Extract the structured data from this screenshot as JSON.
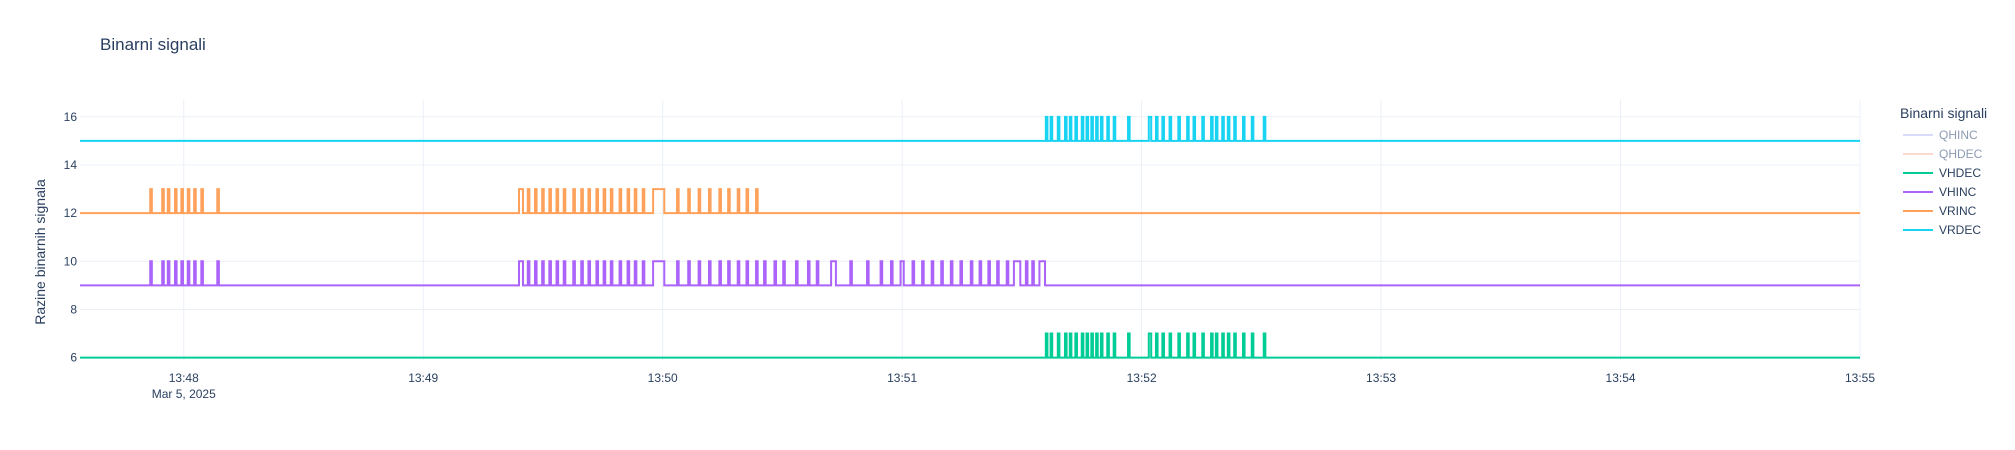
{
  "chart_data": {
    "type": "line",
    "title": "Binarni signali",
    "xlabel": "",
    "ylabel": "Razine binarnih signala",
    "x_range": [
      "2025-03-05 13:47:34",
      "2025-03-05 13:55:00"
    ],
    "ylim": [
      5.9,
      16.7
    ],
    "x_ticks": [
      {
        "t": "2025-03-05 13:48:00",
        "label": "13:48",
        "sub": "Mar 5, 2025"
      },
      {
        "t": "2025-03-05 13:49:00",
        "label": "13:49",
        "sub": ""
      },
      {
        "t": "2025-03-05 13:50:00",
        "label": "13:50",
        "sub": ""
      },
      {
        "t": "2025-03-05 13:51:00",
        "label": "13:51",
        "sub": ""
      },
      {
        "t": "2025-03-05 13:52:00",
        "label": "13:52",
        "sub": ""
      },
      {
        "t": "2025-03-05 13:53:00",
        "label": "13:53",
        "sub": ""
      },
      {
        "t": "2025-03-05 13:54:00",
        "label": "13:54",
        "sub": ""
      },
      {
        "t": "2025-03-05 13:55:00",
        "label": "13:55",
        "sub": ""
      }
    ],
    "y_ticks": [
      6,
      8,
      10,
      12,
      14,
      16
    ],
    "grid": true,
    "legend": {
      "title": "Binarni signali",
      "position": "right"
    },
    "series": [
      {
        "name": "QHINC",
        "color": "#b6b8f5",
        "visible": false,
        "base": 3,
        "pulse": 1,
        "pulses": []
      },
      {
        "name": "QHDEC",
        "color": "#f8b49a",
        "visible": false,
        "base": 3,
        "pulse": 1,
        "pulses": []
      },
      {
        "name": "VHDEC",
        "color": "#00cc96",
        "visible": true,
        "base": 6,
        "pulse": 7,
        "pulses": [
          [
            "13:51:36.0",
            "13:51:36.4"
          ],
          [
            "13:51:37.2",
            "13:51:37.6"
          ],
          [
            "13:51:39.0",
            "13:51:39.4"
          ],
          [
            "13:51:40.8",
            "13:51:41.2"
          ],
          [
            "13:51:42.0",
            "13:51:42.4"
          ],
          [
            "13:51:43.4",
            "13:51:43.8"
          ],
          [
            "13:51:45.0",
            "13:51:45.4"
          ],
          [
            "13:51:46.2",
            "13:51:46.6"
          ],
          [
            "13:51:47.4",
            "13:51:47.8"
          ],
          [
            "13:51:48.6",
            "13:51:49.0"
          ],
          [
            "13:51:49.8",
            "13:51:50.2"
          ],
          [
            "13:51:51.4",
            "13:51:51.8"
          ],
          [
            "13:51:53.0",
            "13:51:53.4"
          ],
          [
            "13:51:56.6",
            "13:51:57.0"
          ],
          [
            "13:52:01.8",
            "13:52:02.4"
          ],
          [
            "13:52:03.6",
            "13:52:04.0"
          ],
          [
            "13:52:05.2",
            "13:52:05.6"
          ],
          [
            "13:52:07.0",
            "13:52:07.4"
          ],
          [
            "13:52:09.2",
            "13:52:09.6"
          ],
          [
            "13:52:11.4",
            "13:52:11.8"
          ],
          [
            "13:52:13.0",
            "13:52:13.4"
          ],
          [
            "13:52:15.2",
            "13:52:15.6"
          ],
          [
            "13:52:17.4",
            "13:52:17.8"
          ],
          [
            "13:52:18.6",
            "13:52:19.0"
          ],
          [
            "13:52:20.2",
            "13:52:20.6"
          ],
          [
            "13:52:21.6",
            "13:52:22.0"
          ],
          [
            "13:52:23.2",
            "13:52:23.6"
          ],
          [
            "13:52:25.4",
            "13:52:25.8"
          ],
          [
            "13:52:27.6",
            "13:52:28.0"
          ],
          [
            "13:52:30.6",
            "13:52:31.0"
          ]
        ]
      },
      {
        "name": "VHINC",
        "color": "#ab63fa",
        "visible": true,
        "base": 9,
        "pulse": 10,
        "pulses": [
          [
            "13:47:51.6",
            "13:47:52.0"
          ],
          [
            "13:47:54.6",
            "13:47:55.0"
          ],
          [
            "13:47:56.0",
            "13:47:56.4"
          ],
          [
            "13:47:57.8",
            "13:47:58.2"
          ],
          [
            "13:47:59.4",
            "13:47:59.8"
          ],
          [
            "13:48:01.0",
            "13:48:01.4"
          ],
          [
            "13:48:02.6",
            "13:48:03.0"
          ],
          [
            "13:48:04.4",
            "13:48:04.8"
          ],
          [
            "13:48:08.4",
            "13:48:08.8"
          ],
          [
            "13:49:24.0",
            "13:49:25.0"
          ],
          [
            "13:49:26.2",
            "13:49:26.6"
          ],
          [
            "13:49:28.0",
            "13:49:28.4"
          ],
          [
            "13:49:29.8",
            "13:49:30.2"
          ],
          [
            "13:49:31.6",
            "13:49:32.0"
          ],
          [
            "13:49:33.4",
            "13:49:33.8"
          ],
          [
            "13:49:35.2",
            "13:49:35.6"
          ],
          [
            "13:49:37.6",
            "13:49:38.0"
          ],
          [
            "13:49:39.6",
            "13:49:40.0"
          ],
          [
            "13:49:41.4",
            "13:49:41.8"
          ],
          [
            "13:49:43.4",
            "13:49:43.8"
          ],
          [
            "13:49:45.2",
            "13:49:45.6"
          ],
          [
            "13:49:47.0",
            "13:49:47.4"
          ],
          [
            "13:49:49.2",
            "13:49:49.6"
          ],
          [
            "13:49:51.2",
            "13:49:51.6"
          ],
          [
            "13:49:53.0",
            "13:49:53.4"
          ],
          [
            "13:49:55.0",
            "13:49:55.4"
          ],
          [
            "13:49:57.6",
            "13:50:00.4"
          ],
          [
            "13:50:03.6",
            "13:50:04.0"
          ],
          [
            "13:50:06.4",
            "13:50:06.8"
          ],
          [
            "13:50:09.0",
            "13:50:09.4"
          ],
          [
            "13:50:11.6",
            "13:50:12.0"
          ],
          [
            "13:50:14.2",
            "13:50:14.6"
          ],
          [
            "13:50:16.4",
            "13:50:16.8"
          ],
          [
            "13:50:18.8",
            "13:50:19.2"
          ],
          [
            "13:50:21.0",
            "13:50:21.4"
          ],
          [
            "13:50:23.4",
            "13:50:23.8"
          ],
          [
            "13:50:25.4",
            "13:50:25.8"
          ],
          [
            "13:50:28.0",
            "13:50:28.4"
          ],
          [
            "13:50:30.2",
            "13:50:30.6"
          ],
          [
            "13:50:33.4",
            "13:50:33.8"
          ],
          [
            "13:50:36.4",
            "13:50:36.8"
          ],
          [
            "13:50:38.6",
            "13:50:39.0"
          ],
          [
            "13:50:42.2",
            "13:50:43.4"
          ],
          [
            "13:50:47.0",
            "13:50:47.4"
          ],
          [
            "13:50:51.2",
            "13:50:51.6"
          ],
          [
            "13:50:54.6",
            "13:50:55.0"
          ],
          [
            "13:50:57.2",
            "13:50:57.6"
          ],
          [
            "13:50:59.6",
            "13:51:00.4"
          ],
          [
            "13:51:02.6",
            "13:51:03.0"
          ],
          [
            "13:51:05.0",
            "13:51:05.4"
          ],
          [
            "13:51:07.4",
            "13:51:07.8"
          ],
          [
            "13:51:09.8",
            "13:51:10.2"
          ],
          [
            "13:51:12.2",
            "13:51:12.6"
          ],
          [
            "13:51:14.6",
            "13:51:15.0"
          ],
          [
            "13:51:17.2",
            "13:51:17.6"
          ],
          [
            "13:51:19.4",
            "13:51:19.8"
          ],
          [
            "13:51:21.6",
            "13:51:22.0"
          ],
          [
            "13:51:23.8",
            "13:51:24.2"
          ],
          [
            "13:51:26.2",
            "13:51:26.6"
          ],
          [
            "13:51:28.0",
            "13:51:29.6"
          ],
          [
            "13:51:31.0",
            "13:51:31.4"
          ],
          [
            "13:51:32.6",
            "13:51:33.0"
          ],
          [
            "13:51:34.4",
            "13:51:35.8"
          ]
        ]
      },
      {
        "name": "VRINC",
        "color": "#ffa15a",
        "visible": true,
        "base": 12,
        "pulse": 13,
        "pulses": [
          [
            "13:47:51.6",
            "13:47:52.0"
          ],
          [
            "13:47:54.6",
            "13:47:55.0"
          ],
          [
            "13:47:56.0",
            "13:47:56.4"
          ],
          [
            "13:47:57.8",
            "13:47:58.2"
          ],
          [
            "13:47:59.4",
            "13:47:59.8"
          ],
          [
            "13:48:01.0",
            "13:48:01.4"
          ],
          [
            "13:48:02.6",
            "13:48:03.0"
          ],
          [
            "13:48:04.4",
            "13:48:04.8"
          ],
          [
            "13:48:08.4",
            "13:48:08.8"
          ],
          [
            "13:49:24.0",
            "13:49:25.0"
          ],
          [
            "13:49:26.2",
            "13:49:26.6"
          ],
          [
            "13:49:28.0",
            "13:49:28.4"
          ],
          [
            "13:49:29.8",
            "13:49:30.2"
          ],
          [
            "13:49:31.6",
            "13:49:32.0"
          ],
          [
            "13:49:33.4",
            "13:49:33.8"
          ],
          [
            "13:49:35.2",
            "13:49:35.6"
          ],
          [
            "13:49:37.6",
            "13:49:38.0"
          ],
          [
            "13:49:39.6",
            "13:49:40.0"
          ],
          [
            "13:49:41.4",
            "13:49:41.8"
          ],
          [
            "13:49:43.4",
            "13:49:43.8"
          ],
          [
            "13:49:45.2",
            "13:49:45.6"
          ],
          [
            "13:49:47.0",
            "13:49:47.4"
          ],
          [
            "13:49:49.2",
            "13:49:49.6"
          ],
          [
            "13:49:51.2",
            "13:49:51.6"
          ],
          [
            "13:49:53.0",
            "13:49:53.4"
          ],
          [
            "13:49:55.0",
            "13:49:55.4"
          ],
          [
            "13:49:57.6",
            "13:50:00.4"
          ],
          [
            "13:50:03.6",
            "13:50:04.0"
          ],
          [
            "13:50:06.4",
            "13:50:06.8"
          ],
          [
            "13:50:09.0",
            "13:50:09.4"
          ],
          [
            "13:50:11.6",
            "13:50:12.0"
          ],
          [
            "13:50:14.2",
            "13:50:14.6"
          ],
          [
            "13:50:16.4",
            "13:50:16.8"
          ],
          [
            "13:50:18.8",
            "13:50:19.2"
          ],
          [
            "13:50:21.0",
            "13:50:21.4"
          ],
          [
            "13:50:23.4",
            "13:50:23.8"
          ]
        ]
      },
      {
        "name": "VRDEC",
        "color": "#19d3f3",
        "visible": true,
        "base": 15,
        "pulse": 16,
        "pulses": [
          [
            "13:51:36.0",
            "13:51:36.4"
          ],
          [
            "13:51:37.2",
            "13:51:37.6"
          ],
          [
            "13:51:39.0",
            "13:51:39.4"
          ],
          [
            "13:51:40.8",
            "13:51:41.2"
          ],
          [
            "13:51:42.0",
            "13:51:42.4"
          ],
          [
            "13:51:43.4",
            "13:51:43.8"
          ],
          [
            "13:51:45.0",
            "13:51:45.4"
          ],
          [
            "13:51:46.2",
            "13:51:46.6"
          ],
          [
            "13:51:47.4",
            "13:51:47.8"
          ],
          [
            "13:51:48.6",
            "13:51:49.0"
          ],
          [
            "13:51:49.8",
            "13:51:50.2"
          ],
          [
            "13:51:51.4",
            "13:51:51.8"
          ],
          [
            "13:51:53.0",
            "13:51:53.4"
          ],
          [
            "13:51:56.6",
            "13:51:57.0"
          ],
          [
            "13:52:01.8",
            "13:52:02.4"
          ],
          [
            "13:52:03.6",
            "13:52:04.0"
          ],
          [
            "13:52:05.2",
            "13:52:05.6"
          ],
          [
            "13:52:07.0",
            "13:52:07.4"
          ],
          [
            "13:52:09.2",
            "13:52:09.6"
          ],
          [
            "13:52:11.4",
            "13:52:11.8"
          ],
          [
            "13:52:13.0",
            "13:52:13.4"
          ],
          [
            "13:52:15.2",
            "13:52:15.6"
          ],
          [
            "13:52:17.4",
            "13:52:17.8"
          ],
          [
            "13:52:18.6",
            "13:52:19.0"
          ],
          [
            "13:52:20.2",
            "13:52:20.6"
          ],
          [
            "13:52:21.6",
            "13:52:22.0"
          ],
          [
            "13:52:23.2",
            "13:52:23.6"
          ],
          [
            "13:52:25.4",
            "13:52:25.8"
          ],
          [
            "13:52:27.6",
            "13:52:28.0"
          ],
          [
            "13:52:30.6",
            "13:52:31.0"
          ]
        ]
      }
    ]
  }
}
